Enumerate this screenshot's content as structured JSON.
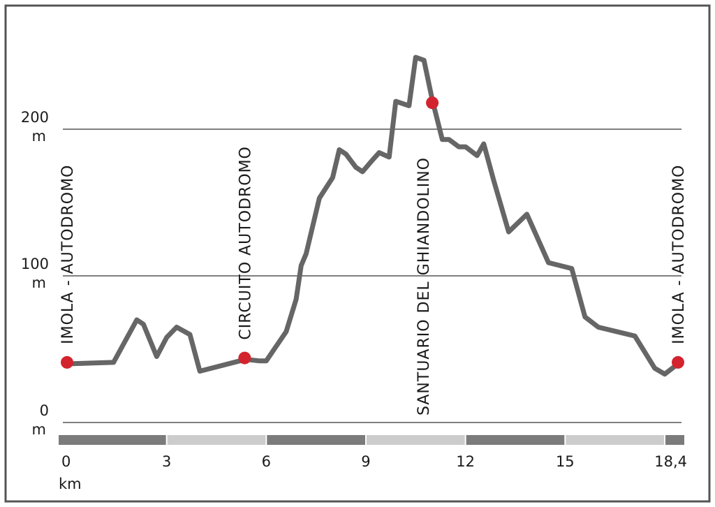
{
  "chart_data": {
    "type": "line",
    "title": "",
    "xlabel": "",
    "ylabel": "",
    "x_unit": "km",
    "y_unit": "m",
    "xlim": [
      0,
      18.4
    ],
    "ylim": [
      0,
      250
    ],
    "y_ticks": [
      {
        "value": 0,
        "label": "0"
      },
      {
        "value": 100,
        "label": "100"
      },
      {
        "value": 200,
        "label": "200"
      }
    ],
    "x_ticks": [
      {
        "value": 0,
        "label": "0"
      },
      {
        "value": 3,
        "label": "3"
      },
      {
        "value": 6,
        "label": "6"
      },
      {
        "value": 9,
        "label": "9"
      },
      {
        "value": 12,
        "label": "12"
      },
      {
        "value": 15,
        "label": "15"
      },
      {
        "value": 18.4,
        "label": "18,4"
      }
    ],
    "grid": true,
    "series": [
      {
        "color": "#666666",
        "x": [
          0,
          1.4,
          2.1,
          2.3,
          2.7,
          3.0,
          3.3,
          3.7,
          4.0,
          5.2,
          5.4,
          5.8,
          6.0,
          6.6,
          6.9,
          7.05,
          7.2,
          7.6,
          8.0,
          8.2,
          8.4,
          8.7,
          8.9,
          9.2,
          9.4,
          9.7,
          9.9,
          10.3,
          10.5,
          10.75,
          11.0,
          11.3,
          11.5,
          11.8,
          12.0,
          12.35,
          12.55,
          12.85,
          13.3,
          13.85,
          14.5,
          15.2,
          15.6,
          16.0,
          17.1,
          17.7,
          18.0,
          18.4
        ],
        "y": [
          40,
          41,
          70,
          67,
          45,
          58,
          65,
          60,
          35,
          42,
          43,
          42,
          42,
          62,
          84,
          107,
          115,
          153,
          167,
          186,
          183,
          174,
          171,
          179,
          184,
          181,
          219,
          216,
          249,
          247,
          220,
          193,
          193,
          188,
          188,
          182,
          190,
          165,
          130,
          142,
          109,
          105,
          72,
          65,
          59,
          37,
          33,
          40
        ]
      }
    ],
    "waypoints": [
      {
        "label": "IMOLA - AUTODROMO",
        "x": 0,
        "y": 41
      },
      {
        "label": "CIRCUITO AUTODROMO",
        "x": 5.35,
        "y": 44
      },
      {
        "label": "SANTUARIO DEL GHIANDOLINO",
        "x": 11.0,
        "y": 218
      },
      {
        "label": "IMOLA - AUTODROMO",
        "x": 18.4,
        "y": 41
      }
    ],
    "scale_bar_colors": [
      "#7b7b7b",
      "#cccccc"
    ],
    "marker_color": "#d3232e",
    "frame_color": "#555555"
  }
}
